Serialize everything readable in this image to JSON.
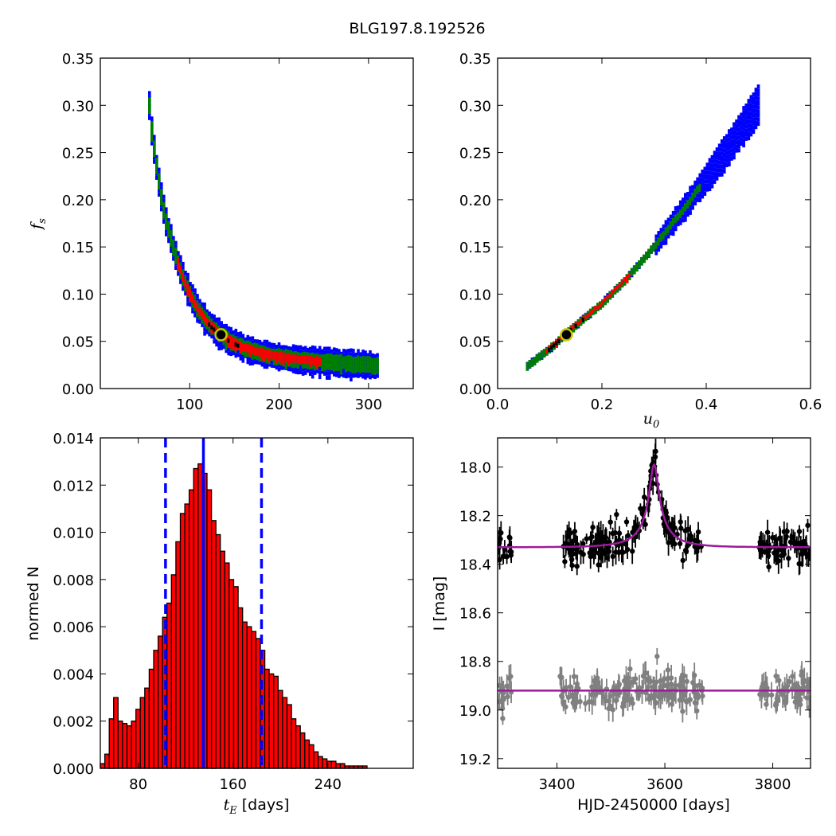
{
  "figure": {
    "title": "BLG197.8.192526"
  },
  "chart_data": [
    {
      "id": "fs_vs_tE",
      "type": "heatmap",
      "title": "",
      "xlabel": "",
      "ylabel": "f_s",
      "xlim": [
        0,
        350
      ],
      "ylim": [
        0.0,
        0.35
      ],
      "xticks": [
        100,
        200,
        300
      ],
      "yticks": [
        0.0,
        0.05,
        0.1,
        0.15,
        0.2,
        0.25,
        0.3,
        0.35
      ],
      "level_colors": {
        "outer": "#0000ff",
        "middle": "#008000",
        "inner": "#ff0000",
        "best_cells": "#000000"
      },
      "ridge": [
        [
          55,
          0.3
        ],
        [
          58,
          0.27
        ],
        [
          63,
          0.235
        ],
        [
          68,
          0.205
        ],
        [
          73,
          0.18
        ],
        [
          80,
          0.155
        ],
        [
          88,
          0.13
        ],
        [
          95,
          0.112
        ],
        [
          103,
          0.095
        ],
        [
          112,
          0.08
        ],
        [
          125,
          0.065
        ],
        [
          140,
          0.053
        ],
        [
          160,
          0.043
        ],
        [
          185,
          0.036
        ],
        [
          215,
          0.031
        ],
        [
          250,
          0.028
        ],
        [
          280,
          0.026
        ],
        [
          310,
          0.024
        ]
      ],
      "best_fit": {
        "x": 135,
        "y": 0.057,
        "marker_color": "#c8c800"
      }
    },
    {
      "id": "fs_vs_u0",
      "type": "heatmap",
      "title": "",
      "xlabel": "u_0",
      "ylabel": "",
      "xlim": [
        0.0,
        0.6
      ],
      "ylim": [
        0.0,
        0.35
      ],
      "xticks": [
        0.0,
        0.2,
        0.4,
        0.6
      ],
      "yticks": [
        0.0,
        0.05,
        0.1,
        0.15,
        0.2,
        0.25,
        0.3,
        0.35
      ],
      "level_colors": {
        "outer": "#0000ff",
        "middle": "#008000",
        "inner": "#ff0000",
        "best_cells": "#000000"
      },
      "ridge": [
        [
          0.057,
          0.024
        ],
        [
          0.1,
          0.042
        ],
        [
          0.14,
          0.062
        ],
        [
          0.2,
          0.09
        ],
        [
          0.25,
          0.118
        ],
        [
          0.3,
          0.15
        ],
        [
          0.35,
          0.185
        ],
        [
          0.4,
          0.222
        ],
        [
          0.45,
          0.26
        ],
        [
          0.5,
          0.3
        ]
      ],
      "best_fit": {
        "x": 0.132,
        "y": 0.057,
        "marker_color": "#c8c800"
      }
    },
    {
      "id": "tE_histogram",
      "type": "bar",
      "title": "",
      "xlabel": "t_E [days]",
      "ylabel": "normed N",
      "xlim": [
        48,
        312
      ],
      "ylim": [
        0.0,
        0.014
      ],
      "xticks": [
        80,
        160,
        240
      ],
      "yticks": [
        0.0,
        0.002,
        0.004,
        0.006,
        0.008,
        0.01,
        0.012,
        0.014
      ],
      "bar_color": "#ff0000",
      "bin_start": 48,
      "bin_width": 3.75,
      "values": [
        0.0002,
        0.0006,
        0.0021,
        0.003,
        0.002,
        0.0019,
        0.0018,
        0.002,
        0.0025,
        0.003,
        0.0034,
        0.0042,
        0.005,
        0.0056,
        0.0064,
        0.007,
        0.0082,
        0.0096,
        0.0108,
        0.0112,
        0.0118,
        0.0127,
        0.0129,
        0.0125,
        0.0118,
        0.0105,
        0.0099,
        0.0092,
        0.0087,
        0.008,
        0.0077,
        0.0068,
        0.0062,
        0.006,
        0.0058,
        0.0055,
        0.005,
        0.0042,
        0.004,
        0.0039,
        0.0033,
        0.003,
        0.0027,
        0.0021,
        0.0018,
        0.0015,
        0.0012,
        0.001,
        0.0007,
        0.0005,
        0.0004,
        0.0003,
        0.0003,
        0.0002,
        0.0002,
        0.0001,
        0.0001,
        0.0001,
        0.0001,
        0.0001,
        0.0,
        0.0,
        0.0,
        0.0,
        0.0,
        0.0,
        0.0,
        0.0,
        0.0,
        0.0
      ],
      "vlines": [
        {
          "x": 103,
          "style": "dashed",
          "color": "#0000ff"
        },
        {
          "x": 135,
          "style": "solid",
          "color": "#0000ff"
        },
        {
          "x": 184,
          "style": "dashed",
          "color": "#0000ff"
        }
      ]
    },
    {
      "id": "lightcurve",
      "type": "scatter",
      "title": "",
      "xlabel": "HJD-2450000 [days]",
      "ylabel": "I [mag]",
      "xlim": [
        3290,
        3870
      ],
      "ylim": [
        19.24,
        17.88
      ],
      "xticks": [
        3400,
        3600,
        3800
      ],
      "yticks": [
        18.0,
        18.2,
        18.4,
        18.6,
        18.8,
        19.0,
        19.2
      ],
      "series": [
        {
          "kind": "data",
          "color": "#000000",
          "baseline": 18.33,
          "peak_mag": 17.99,
          "t0": 3580
        },
        {
          "kind": "data_offset",
          "color": "#808080",
          "baseline": 18.92
        },
        {
          "kind": "model",
          "color": "#9b1b9b",
          "baseline": 18.33,
          "peak_mag": 17.99,
          "t0": 3580,
          "u0": 0.132,
          "tE": 135
        },
        {
          "kind": "model_flat",
          "color": "#9b1b9b",
          "baseline": 18.92
        }
      ],
      "observing_seasons": [
        [
          3290,
          3318
        ],
        [
          3405,
          3670
        ],
        [
          3775,
          3870
        ]
      ]
    }
  ]
}
